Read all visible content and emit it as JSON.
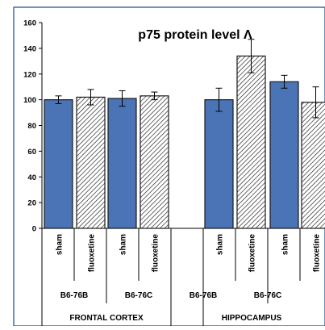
{
  "chart_data": {
    "type": "bar",
    "title": "p75  protein level  Λ",
    "xlabel": "",
    "ylabel": "",
    "ylim": [
      0,
      160
    ],
    "yticks": [
      0,
      20,
      40,
      60,
      80,
      100,
      120,
      140,
      160
    ],
    "grid": false,
    "legend": "none",
    "bars": [
      {
        "condition": "sham",
        "strain": "B6-76B",
        "region": "FRONTAL CORTEX",
        "value": 100,
        "error": 3,
        "fill": "solid"
      },
      {
        "condition": "fluoxetine",
        "strain": "B6-76B",
        "region": "FRONTAL CORTEX",
        "value": 102,
        "error": 6,
        "fill": "hatched"
      },
      {
        "condition": "sham",
        "strain": "B6-76C",
        "region": "FRONTAL CORTEX",
        "value": 101,
        "error": 6,
        "fill": "solid"
      },
      {
        "condition": "fluoxetine",
        "strain": "B6-76C",
        "region": "FRONTAL CORTEX",
        "value": 103,
        "error": 3,
        "fill": "hatched"
      },
      {
        "condition": "sham",
        "strain": "B6-76B",
        "region": "HIPPOCAMPUS",
        "value": 100,
        "error": 9,
        "fill": "solid"
      },
      {
        "condition": "fluoxetine",
        "strain": "B6-76B",
        "region": "HIPPOCAMPUS",
        "value": 134,
        "error": 13,
        "fill": "hatched"
      },
      {
        "condition": "sham",
        "strain": "B6-76C",
        "region": "HIPPOCAMPUS",
        "value": 114,
        "error": 5,
        "fill": "solid"
      },
      {
        "condition": "fluoxetine",
        "strain": "B6-76C",
        "region": "HIPPOCAMPUS",
        "value": 98,
        "error": 12,
        "fill": "hatched"
      }
    ],
    "strain_labels": [
      {
        "text": "B6-76B",
        "span": [
          0,
          1
        ]
      },
      {
        "text": "B6-76C",
        "span": [
          2,
          3
        ]
      },
      {
        "text": "B6-76B",
        "span": [
          4,
          5
        ]
      },
      {
        "text": "B6-76C",
        "span": [
          6,
          7
        ]
      }
    ],
    "region_labels": [
      {
        "text": "FRONTAL CORTEX",
        "span": [
          0,
          3
        ]
      },
      {
        "text": "HIPPOCAMPUS",
        "span": [
          4,
          7
        ]
      }
    ]
  },
  "colors": {
    "frame_border": "#3e6fa7",
    "solid_bar": "#4a74b5",
    "solid_bar_edge": "#1a1a1a",
    "hatch_line": "#1a1a1a",
    "axis": "#000000",
    "text": "#000000"
  }
}
